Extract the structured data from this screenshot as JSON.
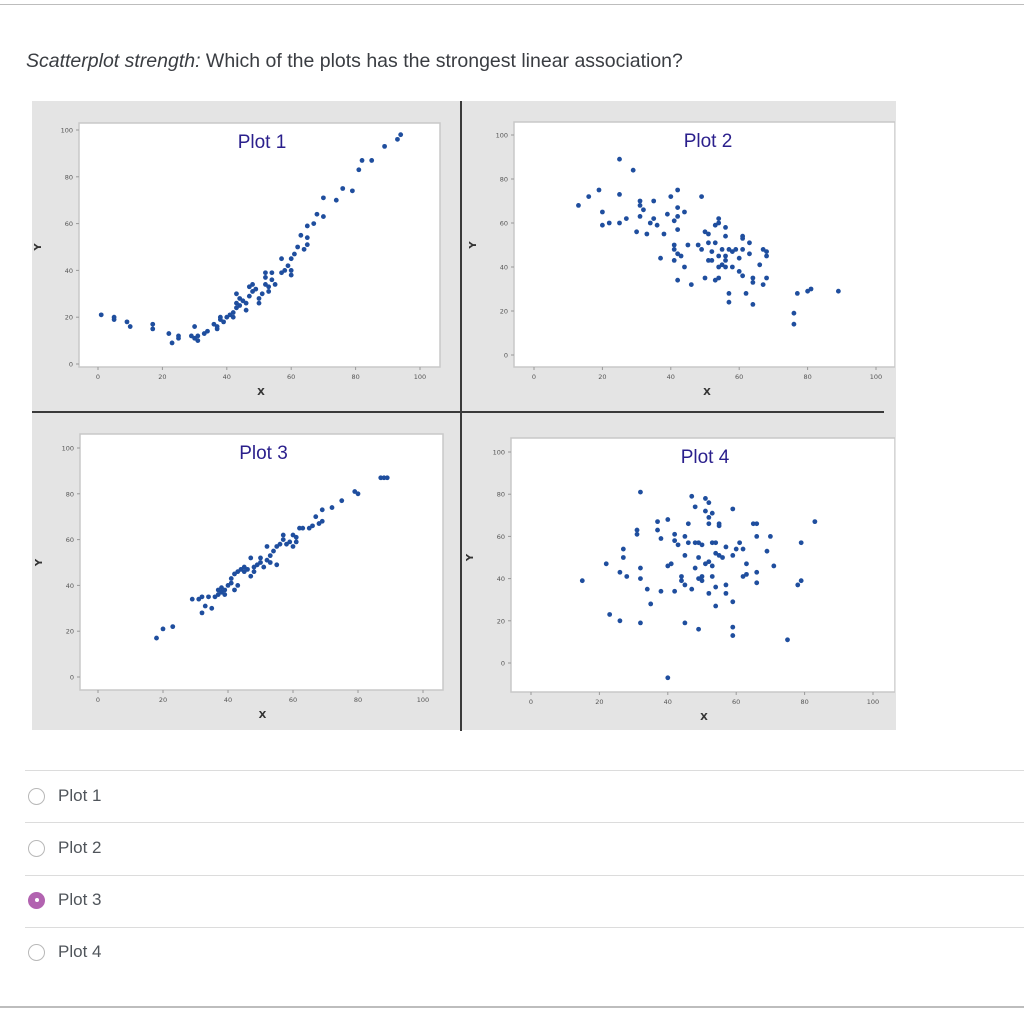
{
  "question": {
    "lead": "Scatterplot strength:",
    "text": " Which of the plots has the strongest linear association?"
  },
  "colors": {
    "point": "#1f4e9e",
    "title": "#2a1f8c",
    "selected_radio": "#b263b0",
    "panel_bg": "#e4e4e4"
  },
  "options": [
    {
      "label": "Plot 1",
      "selected": false
    },
    {
      "label": "Plot 2",
      "selected": false
    },
    {
      "label": "Plot 3",
      "selected": true
    },
    {
      "label": "Plot 4",
      "selected": false
    }
  ],
  "chart_data": [
    {
      "type": "scatter",
      "title": "Plot 1",
      "xlabel": "X",
      "ylabel": "Y",
      "xlim": [
        -5,
        105
      ],
      "ylim": [
        -3,
        103
      ],
      "xticks": [
        0,
        20,
        40,
        60,
        80,
        100
      ],
      "yticks": [
        0,
        20,
        40,
        60,
        80,
        100
      ],
      "grid": false,
      "points": [
        [
          1,
          21
        ],
        [
          5,
          20
        ],
        [
          5,
          19
        ],
        [
          9,
          18
        ],
        [
          10,
          16
        ],
        [
          17,
          17
        ],
        [
          17,
          15
        ],
        [
          22,
          13
        ],
        [
          23,
          9
        ],
        [
          25,
          11
        ],
        [
          25,
          12
        ],
        [
          29,
          12
        ],
        [
          30,
          11
        ],
        [
          30,
          16
        ],
        [
          31,
          10
        ],
        [
          31,
          12
        ],
        [
          33,
          13
        ],
        [
          34,
          14
        ],
        [
          36,
          17
        ],
        [
          37,
          16
        ],
        [
          37,
          15
        ],
        [
          38,
          19
        ],
        [
          38,
          20
        ],
        [
          39,
          18
        ],
        [
          40,
          20
        ],
        [
          41,
          21
        ],
        [
          42,
          20
        ],
        [
          42,
          22
        ],
        [
          43,
          24
        ],
        [
          43,
          26
        ],
        [
          43,
          30
        ],
        [
          44,
          25
        ],
        [
          44,
          28
        ],
        [
          45,
          27
        ],
        [
          46,
          26
        ],
        [
          46,
          23
        ],
        [
          47,
          29
        ],
        [
          47,
          33
        ],
        [
          48,
          34
        ],
        [
          48,
          31
        ],
        [
          49,
          32
        ],
        [
          50,
          26
        ],
        [
          50,
          28
        ],
        [
          51,
          30
        ],
        [
          52,
          34
        ],
        [
          52,
          37
        ],
        [
          52,
          39
        ],
        [
          53,
          31
        ],
        [
          53,
          33
        ],
        [
          54,
          36
        ],
        [
          54,
          39
        ],
        [
          55,
          34
        ],
        [
          57,
          39
        ],
        [
          57,
          45
        ],
        [
          58,
          40
        ],
        [
          59,
          42
        ],
        [
          60,
          38
        ],
        [
          60,
          40
        ],
        [
          60,
          45
        ],
        [
          61,
          47
        ],
        [
          62,
          50
        ],
        [
          63,
          55
        ],
        [
          64,
          49
        ],
        [
          65,
          59
        ],
        [
          65,
          54
        ],
        [
          65,
          51
        ],
        [
          67,
          60
        ],
        [
          68,
          64
        ],
        [
          70,
          63
        ],
        [
          70,
          71
        ],
        [
          74,
          70
        ],
        [
          76,
          75
        ],
        [
          79,
          74
        ],
        [
          81,
          83
        ],
        [
          82,
          87
        ],
        [
          85,
          87
        ],
        [
          89,
          93
        ],
        [
          93,
          96
        ],
        [
          94,
          98
        ]
      ]
    },
    {
      "type": "scatter",
      "title": "Plot 2",
      "xlabel": "X",
      "ylabel": "Y",
      "xlim": [
        -5,
        105
      ],
      "ylim": [
        -5,
        105
      ],
      "xticks": [
        0,
        20,
        40,
        60,
        80,
        100
      ],
      "yticks": [
        0,
        20,
        40,
        60,
        80,
        100
      ],
      "grid": false,
      "points": [
        [
          13,
          68
        ],
        [
          16,
          72
        ],
        [
          19,
          75
        ],
        [
          20,
          59
        ],
        [
          20,
          65
        ],
        [
          22,
          60
        ],
        [
          25,
          89
        ],
        [
          25,
          73
        ],
        [
          25,
          60
        ],
        [
          27,
          62
        ],
        [
          29,
          84
        ],
        [
          30,
          56
        ],
        [
          31,
          70
        ],
        [
          31,
          68
        ],
        [
          31,
          63
        ],
        [
          32,
          66
        ],
        [
          33,
          55
        ],
        [
          34,
          60
        ],
        [
          35,
          70
        ],
        [
          35,
          62
        ],
        [
          36,
          59
        ],
        [
          37,
          44
        ],
        [
          38,
          55
        ],
        [
          39,
          64
        ],
        [
          40,
          72
        ],
        [
          41,
          61
        ],
        [
          41,
          50
        ],
        [
          41,
          48
        ],
        [
          42,
          75
        ],
        [
          42,
          63
        ],
        [
          42,
          57
        ],
        [
          42,
          46
        ],
        [
          41,
          43
        ],
        [
          42,
          67
        ],
        [
          43,
          45
        ],
        [
          42,
          34
        ],
        [
          44,
          65
        ],
        [
          44,
          40
        ],
        [
          45,
          50
        ],
        [
          46,
          32
        ],
        [
          48,
          50
        ],
        [
          49,
          72
        ],
        [
          49,
          48
        ],
        [
          50,
          56
        ],
        [
          51,
          55
        ],
        [
          51,
          51
        ],
        [
          51,
          43
        ],
        [
          50,
          35
        ],
        [
          52,
          47
        ],
        [
          52,
          43
        ],
        [
          53,
          59
        ],
        [
          53,
          51
        ],
        [
          54,
          62
        ],
        [
          54,
          60
        ],
        [
          54,
          45
        ],
        [
          54,
          40
        ],
        [
          53,
          34
        ],
        [
          54,
          35
        ],
        [
          55,
          48
        ],
        [
          55,
          41
        ],
        [
          56,
          58
        ],
        [
          56,
          54
        ],
        [
          56,
          45
        ],
        [
          56,
          43
        ],
        [
          56,
          40
        ],
        [
          57,
          48
        ],
        [
          57,
          28
        ],
        [
          57,
          24
        ],
        [
          58,
          40
        ],
        [
          58,
          47
        ],
        [
          59,
          48
        ],
        [
          60,
          44
        ],
        [
          60,
          38
        ],
        [
          61,
          54
        ],
        [
          61,
          53
        ],
        [
          61,
          48
        ],
        [
          61,
          36
        ],
        [
          62,
          28
        ],
        [
          63,
          51
        ],
        [
          63,
          46
        ],
        [
          64,
          35
        ],
        [
          64,
          33
        ],
        [
          64,
          23
        ],
        [
          66,
          41
        ],
        [
          67,
          48
        ],
        [
          67,
          32
        ],
        [
          68,
          47
        ],
        [
          68,
          45
        ],
        [
          68,
          35
        ],
        [
          76,
          19
        ],
        [
          76,
          14
        ],
        [
          77,
          28
        ],
        [
          80,
          29
        ],
        [
          81,
          30
        ],
        [
          89,
          29
        ]
      ]
    },
    {
      "type": "scatter",
      "title": "Plot 3",
      "xlabel": "X",
      "ylabel": "Y",
      "xlim": [
        -5,
        105
      ],
      "ylim": [
        -6,
        106
      ],
      "xticks": [
        0,
        20,
        40,
        60,
        80,
        100
      ],
      "yticks": [
        0,
        20,
        40,
        60,
        80,
        100
      ],
      "grid": false,
      "points": [
        [
          18,
          17
        ],
        [
          20,
          21
        ],
        [
          23,
          22
        ],
        [
          29,
          34
        ],
        [
          31,
          34
        ],
        [
          32,
          35
        ],
        [
          32,
          28
        ],
        [
          33,
          31
        ],
        [
          34,
          35
        ],
        [
          35,
          30
        ],
        [
          36,
          35
        ],
        [
          37,
          38
        ],
        [
          37,
          36
        ],
        [
          38,
          39
        ],
        [
          38,
          37
        ],
        [
          39,
          38
        ],
        [
          39,
          36
        ],
        [
          40,
          40
        ],
        [
          41,
          41
        ],
        [
          41,
          43
        ],
        [
          42,
          45
        ],
        [
          42,
          38
        ],
        [
          43,
          40
        ],
        [
          43,
          46
        ],
        [
          44,
          47
        ],
        [
          45,
          46
        ],
        [
          45,
          48
        ],
        [
          46,
          47
        ],
        [
          47,
          44
        ],
        [
          47,
          52
        ],
        [
          48,
          48
        ],
        [
          48,
          46
        ],
        [
          49,
          49
        ],
        [
          50,
          52
        ],
        [
          50,
          50
        ],
        [
          51,
          48
        ],
        [
          52,
          51
        ],
        [
          52,
          57
        ],
        [
          53,
          53
        ],
        [
          53,
          50
        ],
        [
          54,
          55
        ],
        [
          55,
          49
        ],
        [
          55,
          57
        ],
        [
          56,
          58
        ],
        [
          57,
          60
        ],
        [
          57,
          62
        ],
        [
          58,
          58
        ],
        [
          59,
          59
        ],
        [
          60,
          62
        ],
        [
          60,
          57
        ],
        [
          61,
          59
        ],
        [
          61,
          61
        ],
        [
          62,
          65
        ],
        [
          63,
          65
        ],
        [
          65,
          65
        ],
        [
          66,
          66
        ],
        [
          67,
          70
        ],
        [
          68,
          67
        ],
        [
          69,
          68
        ],
        [
          69,
          73
        ],
        [
          72,
          74
        ],
        [
          75,
          77
        ],
        [
          79,
          81
        ],
        [
          80,
          80
        ],
        [
          87,
          87
        ],
        [
          88,
          87
        ],
        [
          89,
          87
        ]
      ]
    },
    {
      "type": "scatter",
      "title": "Plot 4",
      "xlabel": "X",
      "ylabel": "Y",
      "xlim": [
        -5,
        105
      ],
      "ylim": [
        -14,
        106
      ],
      "xticks": [
        0,
        20,
        40,
        60,
        80,
        100
      ],
      "yticks": [
        0,
        20,
        40,
        60,
        80,
        100
      ],
      "grid": false,
      "points": [
        [
          15,
          39
        ],
        [
          22,
          47
        ],
        [
          23,
          23
        ],
        [
          26,
          43
        ],
        [
          26,
          20
        ],
        [
          27,
          54
        ],
        [
          27,
          50
        ],
        [
          28,
          41
        ],
        [
          31,
          63
        ],
        [
          31,
          61
        ],
        [
          32,
          81
        ],
        [
          32,
          45
        ],
        [
          32,
          40
        ],
        [
          32,
          19
        ],
        [
          34,
          35
        ],
        [
          35,
          28
        ],
        [
          37,
          67
        ],
        [
          37,
          63
        ],
        [
          38,
          59
        ],
        [
          38,
          34
        ],
        [
          40,
          68
        ],
        [
          40,
          46
        ],
        [
          40,
          -7
        ],
        [
          41,
          47
        ],
        [
          42,
          61
        ],
        [
          42,
          58
        ],
        [
          42,
          34
        ],
        [
          43,
          56
        ],
        [
          44,
          39
        ],
        [
          44,
          41
        ],
        [
          45,
          60
        ],
        [
          45,
          51
        ],
        [
          45,
          37
        ],
        [
          45,
          19
        ],
        [
          46,
          66
        ],
        [
          46,
          57
        ],
        [
          47,
          79
        ],
        [
          47,
          35
        ],
        [
          48,
          74
        ],
        [
          48,
          45
        ],
        [
          48,
          57
        ],
        [
          49,
          57
        ],
        [
          49,
          40
        ],
        [
          49,
          16
        ],
        [
          49,
          50
        ],
        [
          50,
          56
        ],
        [
          50,
          39
        ],
        [
          50,
          41
        ],
        [
          51,
          78
        ],
        [
          51,
          72
        ],
        [
          51,
          47
        ],
        [
          52,
          76
        ],
        [
          52,
          69
        ],
        [
          52,
          66
        ],
        [
          52,
          48
        ],
        [
          52,
          33
        ],
        [
          53,
          71
        ],
        [
          53,
          46
        ],
        [
          53,
          41
        ],
        [
          53,
          57
        ],
        [
          54,
          52
        ],
        [
          54,
          36
        ],
        [
          54,
          27
        ],
        [
          54,
          57
        ],
        [
          55,
          66
        ],
        [
          55,
          65
        ],
        [
          55,
          51
        ],
        [
          56,
          50
        ],
        [
          57,
          55
        ],
        [
          57,
          37
        ],
        [
          57,
          33
        ],
        [
          59,
          73
        ],
        [
          59,
          51
        ],
        [
          59,
          29
        ],
        [
          59,
          17
        ],
        [
          59,
          13
        ],
        [
          60,
          54
        ],
        [
          61,
          57
        ],
        [
          62,
          54
        ],
        [
          62,
          41
        ],
        [
          63,
          47
        ],
        [
          63,
          42
        ],
        [
          65,
          66
        ],
        [
          66,
          66
        ],
        [
          66,
          60
        ],
        [
          66,
          38
        ],
        [
          66,
          43
        ],
        [
          69,
          53
        ],
        [
          70,
          60
        ],
        [
          71,
          46
        ],
        [
          75,
          11
        ],
        [
          78,
          37
        ],
        [
          79,
          57
        ],
        [
          79,
          39
        ],
        [
          83,
          67
        ]
      ]
    }
  ]
}
